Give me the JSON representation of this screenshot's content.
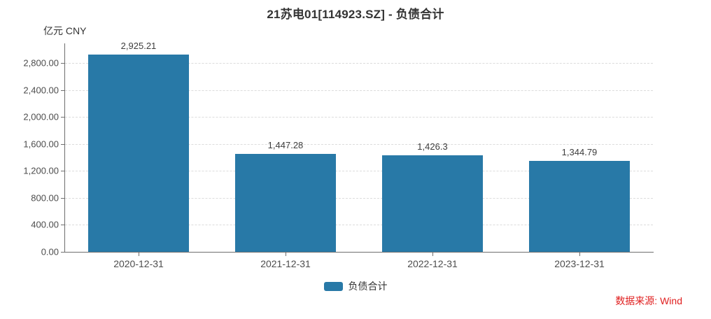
{
  "title": "21苏电01[114923.SZ] - 负债合计",
  "unit_label": "亿元 CNY",
  "source_note": "数据来源: Wind",
  "legend": {
    "label": "负债合计"
  },
  "colors": {
    "bar": "#2879a7",
    "axis_line": "#6e6e6e",
    "gridline": "#dcdcdc",
    "title_text": "#333333",
    "tick_text": "#4d4d4d",
    "value_label_text": "#3d3d3d",
    "source_text": "#e02020"
  },
  "chart_data": {
    "type": "bar",
    "title": "21苏电01[114923.SZ] - 负债合计",
    "series_name": "负债合计",
    "categories": [
      "2020-12-31",
      "2021-12-31",
      "2022-12-31",
      "2023-12-31"
    ],
    "values": [
      2925.21,
      1447.28,
      1426.3,
      1344.79
    ],
    "value_labels": [
      "2,925.21",
      "1,447.28",
      "1,426.3",
      "1,344.79"
    ],
    "ylabel": "亿元 CNY",
    "ylim": [
      0,
      2800
    ],
    "ytick_values": [
      0,
      400,
      800,
      1200,
      1600,
      2000,
      2400,
      2800
    ],
    "ytick_labels": [
      "0.00",
      "400.00",
      "800.00",
      "1,200.00",
      "1,600.00",
      "2,000.00",
      "2,400.00",
      "2,800.00"
    ],
    "grid": true,
    "grid_style": "dashed",
    "legend_position": "bottom",
    "bar_color": "#2879a7"
  }
}
